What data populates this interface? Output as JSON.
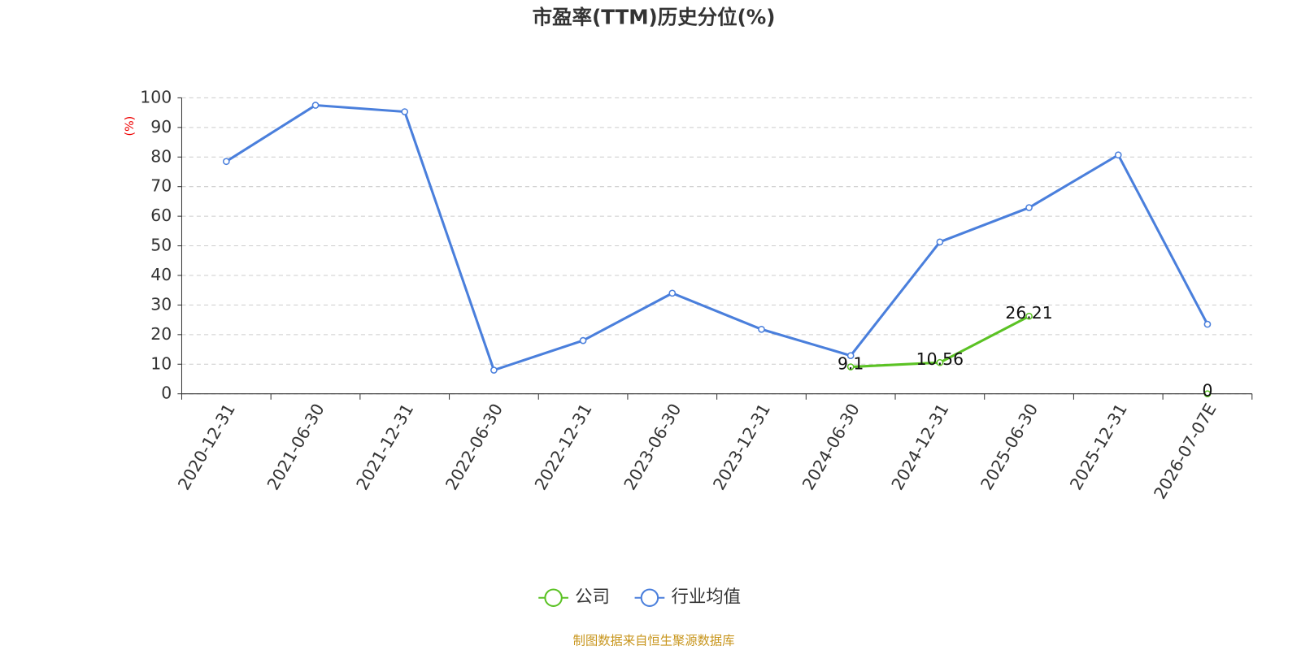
{
  "chart_data": {
    "type": "line",
    "title": "市盈率(TTM)历史分位(%)",
    "y_label": "(%)",
    "categories": [
      "2020-12-31",
      "2021-06-30",
      "2021-12-31",
      "2022-06-30",
      "2022-12-31",
      "2023-06-30",
      "2023-12-31",
      "2024-06-30",
      "2024-12-31",
      "2025-06-30",
      "2025-12-31",
      "2026-07-07E"
    ],
    "series": [
      {
        "name": "公司",
        "color": "#5bc224",
        "values": [
          null,
          null,
          null,
          null,
          null,
          null,
          null,
          9.1,
          10.56,
          26.21,
          null,
          0
        ],
        "show_labels": true
      },
      {
        "name": "行业均值",
        "color": "#4a7fdc",
        "values": [
          78.5,
          97.5,
          95.3,
          8,
          18,
          34,
          21.8,
          12.9,
          51.3,
          62.9,
          80.7,
          23.5
        ],
        "show_labels": false
      }
    ],
    "ylim": [
      0,
      100
    ],
    "yticks": [
      0,
      10,
      20,
      30,
      40,
      50,
      60,
      70,
      80,
      90,
      100
    ],
    "grid": true,
    "legend": "bottom",
    "source": "制图数据来自恒生聚源数据库"
  }
}
